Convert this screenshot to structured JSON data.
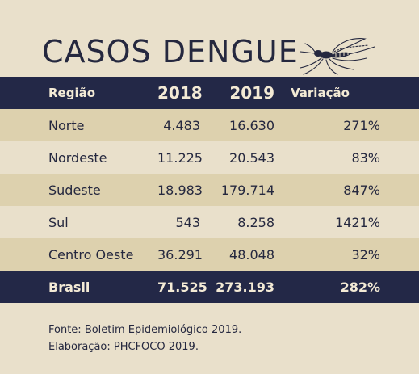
{
  "title": "CASOS DENGUE",
  "table": {
    "headers": {
      "region": "Região",
      "y2018": "2018",
      "y2019": "2019",
      "variation": "Variação"
    },
    "rows": [
      {
        "region": "Norte",
        "y2018": "4.483",
        "y2019": "16.630",
        "variation": "271%"
      },
      {
        "region": "Nordeste",
        "y2018": "11.225",
        "y2019": "20.543",
        "variation": "83%"
      },
      {
        "region": "Sudeste",
        "y2018": "18.983",
        "y2019": "179.714",
        "variation": "847%"
      },
      {
        "region": "Sul",
        "y2018": "543",
        "y2019": "8.258",
        "variation": "1421%"
      },
      {
        "region": "Centro Oeste",
        "y2018": "36.291",
        "y2019": "48.048",
        "variation": "32%"
      }
    ],
    "total": {
      "region": "Brasil",
      "y2018": "71.525",
      "y2019": "273.193",
      "variation": "282%"
    }
  },
  "source": {
    "line1": "Fonte: Boletim Epidemiológico 2019.",
    "line2": "Elaboração: PHCFOCO 2019."
  },
  "colors": {
    "header_bg": "#232847",
    "band": "#ddd1ae",
    "background": "#e9e0cb",
    "text": "#25283f"
  },
  "icons": [
    "mosquito-icon"
  ]
}
